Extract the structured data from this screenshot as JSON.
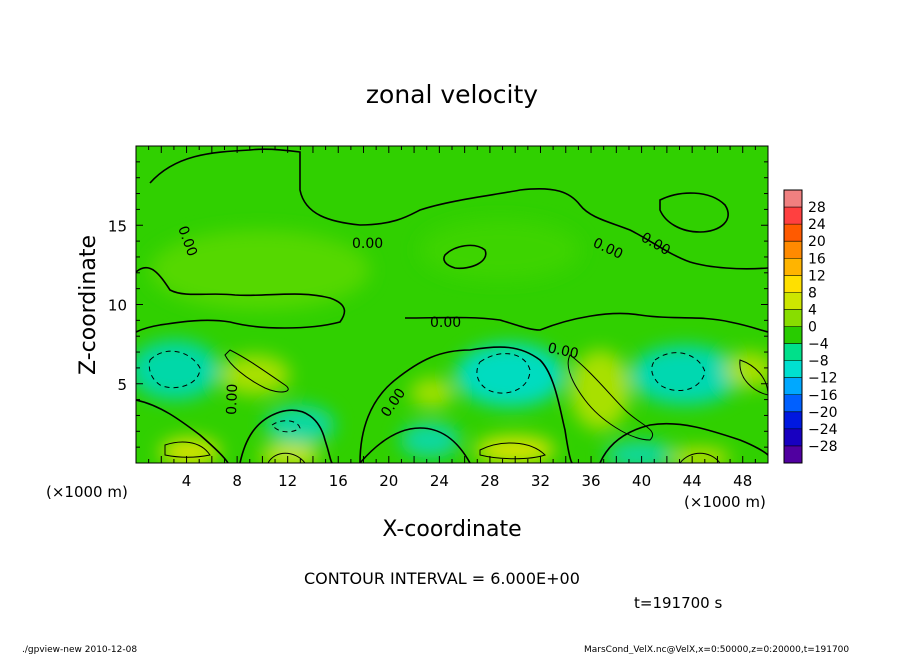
{
  "chart_data": {
    "type": "heatmap",
    "title": "zonal velocity",
    "xlabel": "X-coordinate",
    "ylabel": "Z-coordinate",
    "x_unit": "(×1000 m)",
    "y_unit": "(×1000 m)",
    "xlim": [
      0,
      50
    ],
    "ylim": [
      0,
      20
    ],
    "x_ticks": [
      4,
      8,
      12,
      16,
      20,
      24,
      28,
      32,
      36,
      40,
      44,
      48
    ],
    "y_ticks": [
      5,
      10,
      15
    ],
    "colorbar": {
      "levels": [
        -28,
        -24,
        -20,
        -16,
        -12,
        -8,
        -4,
        0,
        4,
        8,
        12,
        16,
        20,
        24,
        28
      ],
      "labels": [
        "28",
        "24",
        "20",
        "16",
        "12",
        "8",
        "4",
        "0",
        "−4",
        "−8",
        "−12",
        "−16",
        "−20",
        "−24",
        "−28"
      ],
      "colors": [
        "#f08080",
        "#ff4040",
        "#ff5a00",
        "#ff8a00",
        "#ffb400",
        "#ffe000",
        "#cde600",
        "#88dd00",
        "#28cc00",
        "#00e08a",
        "#00e0d0",
        "#00a8ff",
        "#0060ff",
        "#0018e0",
        "#1800c0",
        "#5000a0"
      ]
    },
    "contour_labels": [
      "0.00",
      "0.00",
      "0.00",
      "0.00",
      "0.00",
      "0.00",
      "0.00",
      "0.00"
    ],
    "footer": {
      "contour_interval": "CONTOUR INTERVAL = 6.000E+00",
      "time": "t=191700 s",
      "left_note": "./gpview-new  2010-12-08",
      "right_note": "MarsCond_VelX.nc@VelX,x=0:50000,z=0:20000,t=191700"
    }
  }
}
